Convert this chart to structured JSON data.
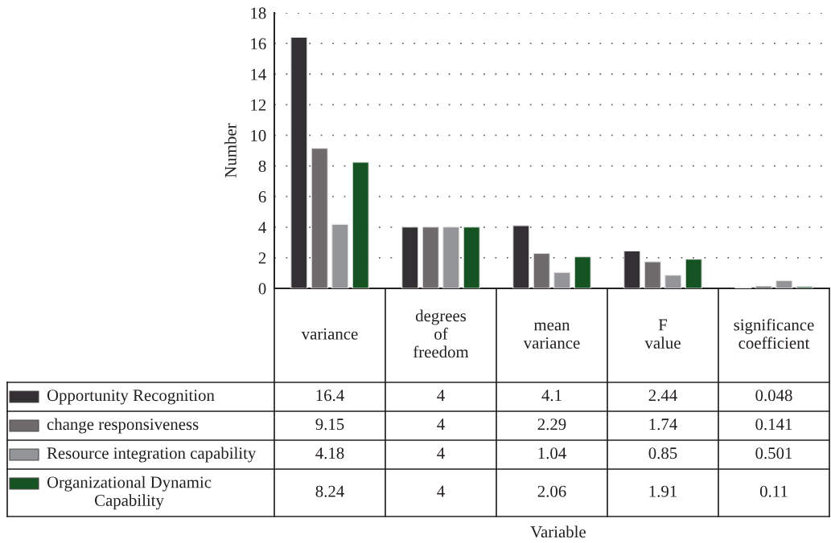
{
  "chart_data": {
    "type": "bar",
    "ylabel": "Number",
    "categories": [
      "variance",
      "degrees\nof\nfreedom",
      "mean\nvariance",
      "F\nvalue",
      "significance\ncoefficient"
    ],
    "series": [
      {
        "name": "Opportunity Recognition",
        "color": "#323033",
        "values": [
          16.4,
          4,
          4.1,
          2.44,
          0.048
        ]
      },
      {
        "name": "change responsiveness",
        "color": "#6f6b6c",
        "values": [
          9.15,
          4,
          2.29,
          1.74,
          0.141
        ]
      },
      {
        "name": "Resource integration capability",
        "color": "#939598",
        "values": [
          4.18,
          4,
          1.04,
          0.85,
          0.501
        ]
      },
      {
        "name": "Organizational Dynamic\nCapability",
        "color": "#155422",
        "values": [
          8.24,
          4,
          2.06,
          1.91,
          0.11
        ]
      }
    ],
    "ylim": [
      0,
      18
    ],
    "yticks": [
      0,
      2,
      4,
      6,
      8,
      10,
      12,
      14,
      16,
      18
    ],
    "grid": "y",
    "legend": "bottom left",
    "data_labels": true,
    "annotations": [
      "Variable"
    ]
  }
}
